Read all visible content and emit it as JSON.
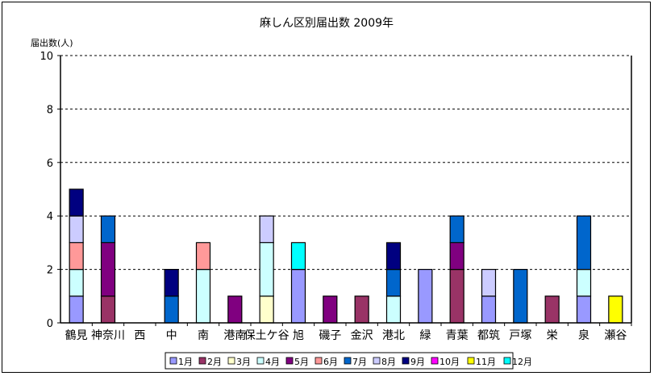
{
  "chart_data": {
    "type": "bar",
    "stacked": true,
    "title": "麻しん区別届出数  2009年",
    "ylabel": "届出数(人)",
    "xlabel": "",
    "ylim": [
      0,
      10
    ],
    "yticks": [
      0,
      2,
      4,
      6,
      8,
      10
    ],
    "grid": "horizontal dashed",
    "legend_position": "bottom",
    "categories": [
      "鶴見",
      "神奈川",
      "西",
      "中",
      "南",
      "港南",
      "保土ケ谷",
      "旭",
      "磯子",
      "金沢",
      "港北",
      "緑",
      "青葉",
      "都筑",
      "戸塚",
      "栄",
      "泉",
      "瀬谷"
    ],
    "series": [
      {
        "name": "1月",
        "color": "#9999FF",
        "values": [
          1,
          0,
          0,
          0,
          0,
          0,
          0,
          2,
          0,
          0,
          0,
          2,
          0,
          1,
          0,
          0,
          1,
          0
        ]
      },
      {
        "name": "2月",
        "color": "#993366",
        "values": [
          0,
          1,
          0,
          0,
          0,
          0,
          0,
          0,
          0,
          1,
          0,
          0,
          2,
          0,
          0,
          1,
          0,
          0
        ]
      },
      {
        "name": "3月",
        "color": "#FFFFCC",
        "values": [
          0,
          0,
          0,
          0,
          0,
          0,
          1,
          0,
          0,
          0,
          0,
          0,
          0,
          0,
          0,
          0,
          0,
          0
        ]
      },
      {
        "name": "4月",
        "color": "#CCFFFF",
        "values": [
          1,
          0,
          0,
          0,
          2,
          0,
          2,
          0,
          0,
          0,
          1,
          0,
          0,
          0,
          0,
          0,
          1,
          0
        ]
      },
      {
        "name": "5月",
        "color": "#800080",
        "values": [
          0,
          2,
          0,
          0,
          0,
          1,
          0,
          0,
          1,
          0,
          0,
          0,
          1,
          0,
          0,
          0,
          0,
          0
        ]
      },
      {
        "name": "6月",
        "color": "#FF9999",
        "values": [
          1,
          0,
          0,
          0,
          1,
          0,
          0,
          0,
          0,
          0,
          0,
          0,
          0,
          0,
          0,
          0,
          0,
          0
        ]
      },
      {
        "name": "7月",
        "color": "#0066CC",
        "values": [
          0,
          1,
          0,
          1,
          0,
          0,
          0,
          0,
          0,
          0,
          1,
          0,
          1,
          0,
          2,
          0,
          2,
          0
        ]
      },
      {
        "name": "8月",
        "color": "#CCCCFF",
        "values": [
          1,
          0,
          0,
          0,
          0,
          0,
          1,
          0,
          0,
          0,
          0,
          0,
          0,
          1,
          0,
          0,
          0,
          0
        ]
      },
      {
        "name": "9月",
        "color": "#000080",
        "values": [
          1,
          0,
          0,
          1,
          0,
          0,
          0,
          0,
          0,
          0,
          1,
          0,
          0,
          0,
          0,
          0,
          0,
          0
        ]
      },
      {
        "name": "10月",
        "color": "#FF00FF",
        "values": [
          0,
          0,
          0,
          0,
          0,
          0,
          0,
          0,
          0,
          0,
          0,
          0,
          0,
          0,
          0,
          0,
          0,
          0
        ]
      },
      {
        "name": "11月",
        "color": "#FFFF00",
        "values": [
          0,
          0,
          0,
          0,
          0,
          0,
          0,
          0,
          0,
          0,
          0,
          0,
          0,
          0,
          0,
          0,
          0,
          1
        ]
      },
      {
        "name": "12月",
        "color": "#00FFFF",
        "values": [
          0,
          0,
          0,
          0,
          0,
          0,
          0,
          1,
          0,
          0,
          0,
          0,
          0,
          0,
          0,
          0,
          0,
          0
        ]
      }
    ]
  }
}
